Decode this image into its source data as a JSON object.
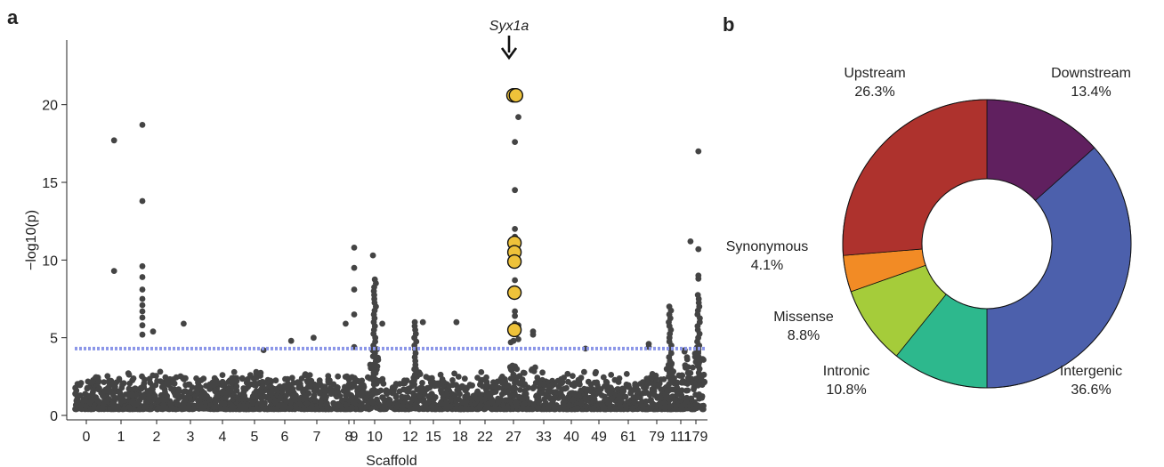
{
  "panel_a_label": "a",
  "panel_b_label": "b",
  "chart_data": [
    {
      "type": "scatter",
      "xlabel": "Scaffold",
      "ylabel": "−log10(p)",
      "ylim": [
        0,
        22.5
      ],
      "yticks": [
        0,
        5,
        10,
        15,
        20
      ],
      "x_categories": [
        "0",
        "1",
        "2",
        "3",
        "4",
        "5",
        "6",
        "7",
        "8",
        "9",
        "10",
        "12",
        "15",
        "18",
        "22",
        "27",
        "33",
        "40",
        "49",
        "61",
        "79",
        "111",
        "179"
      ],
      "threshold": 4.3,
      "threshold_color": "#8b96e8",
      "point_color": "#444444",
      "highlight_color": "#eec23a",
      "annotation": {
        "text": "Syx1a",
        "arrow": "down",
        "x_category": "27"
      },
      "highlighted_points": [
        {
          "x": 27.0,
          "y": 20.6
        },
        {
          "x": 27.5,
          "y": 20.6
        },
        {
          "x": 27.2,
          "y": 11.1
        },
        {
          "x": 27.2,
          "y": 10.5
        },
        {
          "x": 27.2,
          "y": 9.9
        },
        {
          "x": 27.2,
          "y": 7.9
        },
        {
          "x": 27.2,
          "y": 5.5
        }
      ],
      "top_points": [
        {
          "x": 0.8,
          "y": 17.7
        },
        {
          "x": 0.8,
          "y": 9.3
        },
        {
          "x": 1.6,
          "y": 18.7
        },
        {
          "x": 1.6,
          "y": 13.8
        },
        {
          "x": 1.6,
          "y": 9.6
        },
        {
          "x": 1.6,
          "y": 8.9
        },
        {
          "x": 1.6,
          "y": 8.1
        },
        {
          "x": 1.6,
          "y": 7.5
        },
        {
          "x": 1.6,
          "y": 7.1
        },
        {
          "x": 1.6,
          "y": 6.7
        },
        {
          "x": 1.6,
          "y": 6.3
        },
        {
          "x": 1.6,
          "y": 5.8
        },
        {
          "x": 1.6,
          "y": 5.2
        },
        {
          "x": 1.9,
          "y": 5.4
        },
        {
          "x": 2.8,
          "y": 5.9
        },
        {
          "x": 5.3,
          "y": 4.2
        },
        {
          "x": 6.2,
          "y": 4.8
        },
        {
          "x": 6.9,
          "y": 5.0
        },
        {
          "x": 7.9,
          "y": 5.9
        },
        {
          "x": 8.6,
          "y": 10.8
        },
        {
          "x": 8.6,
          "y": 9.5
        },
        {
          "x": 8.6,
          "y": 8.1
        },
        {
          "x": 8.6,
          "y": 6.5
        },
        {
          "x": 8.6,
          "y": 4.4
        },
        {
          "x": 9.9,
          "y": 10.3
        },
        {
          "x": 10.9,
          "y": 5.9
        },
        {
          "x": 15.6,
          "y": 6.0
        },
        {
          "x": 18.5,
          "y": 6.0
        },
        {
          "x": 27.3,
          "y": 17.6
        },
        {
          "x": 27.3,
          "y": 14.5
        },
        {
          "x": 27.3,
          "y": 12.0
        },
        {
          "x": 27.3,
          "y": 11.5
        },
        {
          "x": 27.3,
          "y": 8.7
        },
        {
          "x": 27.3,
          "y": 6.7
        },
        {
          "x": 27.3,
          "y": 6.4
        },
        {
          "x": 27.3,
          "y": 5.9
        },
        {
          "x": 28.0,
          "y": 19.2
        },
        {
          "x": 28.0,
          "y": 5.8
        },
        {
          "x": 28.0,
          "y": 5.4
        },
        {
          "x": 28.0,
          "y": 4.9
        },
        {
          "x": 27.0,
          "y": 4.8
        },
        {
          "x": 26.5,
          "y": 4.7
        },
        {
          "x": 31.0,
          "y": 5.4
        },
        {
          "x": 31.0,
          "y": 5.2
        },
        {
          "x": 48.5,
          "y": 4.3
        },
        {
          "x": 111.0,
          "y": 4.6
        },
        {
          "x": 111.0,
          "y": 4.4
        },
        {
          "x": 170.0,
          "y": 11.2
        },
        {
          "x": 179.5,
          "y": 17.0
        },
        {
          "x": 179.5,
          "y": 10.7
        },
        {
          "x": 179.5,
          "y": 9.0
        },
        {
          "x": 179.5,
          "y": 8.8
        }
      ]
    },
    {
      "type": "pie",
      "donut": true,
      "slices": [
        {
          "label": "Downstream",
          "value": 13.4,
          "display": "13.4%",
          "color": "#60205f"
        },
        {
          "label": "Intergenic",
          "value": 36.6,
          "display": "36.6%",
          "color": "#4c60ac"
        },
        {
          "label": "Intronic",
          "value": 10.8,
          "display": "10.8%",
          "color": "#2db88d"
        },
        {
          "label": "Missense",
          "value": 8.8,
          "display": "8.8%",
          "color": "#a5cc3a"
        },
        {
          "label": "Synonymous",
          "value": 4.1,
          "display": "4.1%",
          "color": "#f28b25"
        },
        {
          "label": "Upstream",
          "value": 26.3,
          "display": "26.3%",
          "color": "#ae322d"
        }
      ]
    }
  ]
}
